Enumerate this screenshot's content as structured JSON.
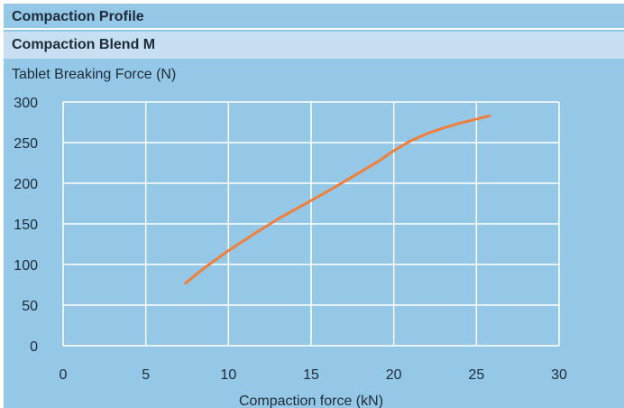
{
  "header": {
    "title": "Compaction Profile",
    "subtitle": "Compaction Blend M"
  },
  "colors": {
    "background": "#95c8e6",
    "subheader": "#c6e0f1",
    "grid": "#ffffff",
    "series": "#f07f3c"
  },
  "chart_data": {
    "type": "line",
    "title": "Compaction Blend M",
    "xlabel": "Compaction force (kN)",
    "ylabel": "Tablet Breaking Force (N)",
    "xlim": [
      0,
      30
    ],
    "ylim": [
      0,
      300
    ],
    "xticks": [
      "0",
      "5",
      "10",
      "15",
      "20",
      "25",
      "30"
    ],
    "yticks": [
      "0",
      "50",
      "100",
      "150",
      "200",
      "250",
      "300"
    ],
    "grid": true,
    "series": [
      {
        "x": [
          7.4,
          8.5,
          10,
          11.5,
          13,
          14.5,
          16,
          17.5,
          19,
          20,
          21,
          22,
          23,
          24,
          25,
          25.8
        ],
        "y": [
          77,
          95,
          117,
          137,
          156,
          173,
          190,
          208,
          226,
          240,
          252,
          261,
          268,
          274,
          279,
          283
        ]
      }
    ]
  }
}
